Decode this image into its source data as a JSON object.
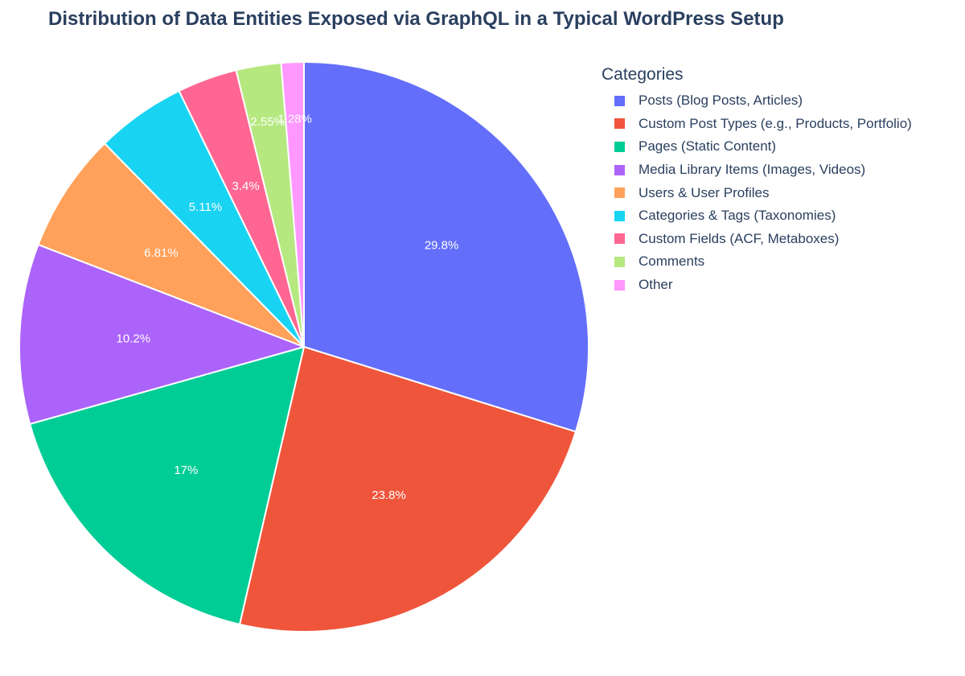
{
  "chart_data": {
    "type": "pie",
    "title": "Distribution of Data Entities Exposed via GraphQL in a Typical WordPress Setup",
    "legend_title": "Categories",
    "legend_position": "right",
    "slices": [
      {
        "label": "Posts (Blog Posts, Articles)",
        "value": 29.8,
        "text": "29.8%",
        "color": "#636efa"
      },
      {
        "label": "Custom Post Types (e.g., Products, Portfolio)",
        "value": 23.8,
        "text": "23.8%",
        "color": "#ef553b"
      },
      {
        "label": "Pages (Static Content)",
        "value": 17,
        "text": "17%",
        "color": "#00cc96"
      },
      {
        "label": "Media Library Items (Images, Videos)",
        "value": 10.2,
        "text": "10.2%",
        "color": "#ab63fa"
      },
      {
        "label": "Users & User Profiles",
        "value": 6.81,
        "text": "6.81%",
        "color": "#ffa15a"
      },
      {
        "label": "Categories & Tags (Taxonomies)",
        "value": 5.11,
        "text": "5.11%",
        "color": "#19d3f3"
      },
      {
        "label": "Custom Fields (ACF, Metaboxes)",
        "value": 3.4,
        "text": "3.4%",
        "color": "#ff6692"
      },
      {
        "label": "Comments",
        "value": 2.55,
        "text": "2.55%",
        "color": "#b6e880"
      },
      {
        "label": "Other",
        "value": 1.28,
        "text": "1.28%",
        "color": "#ff97ff"
      }
    ]
  }
}
